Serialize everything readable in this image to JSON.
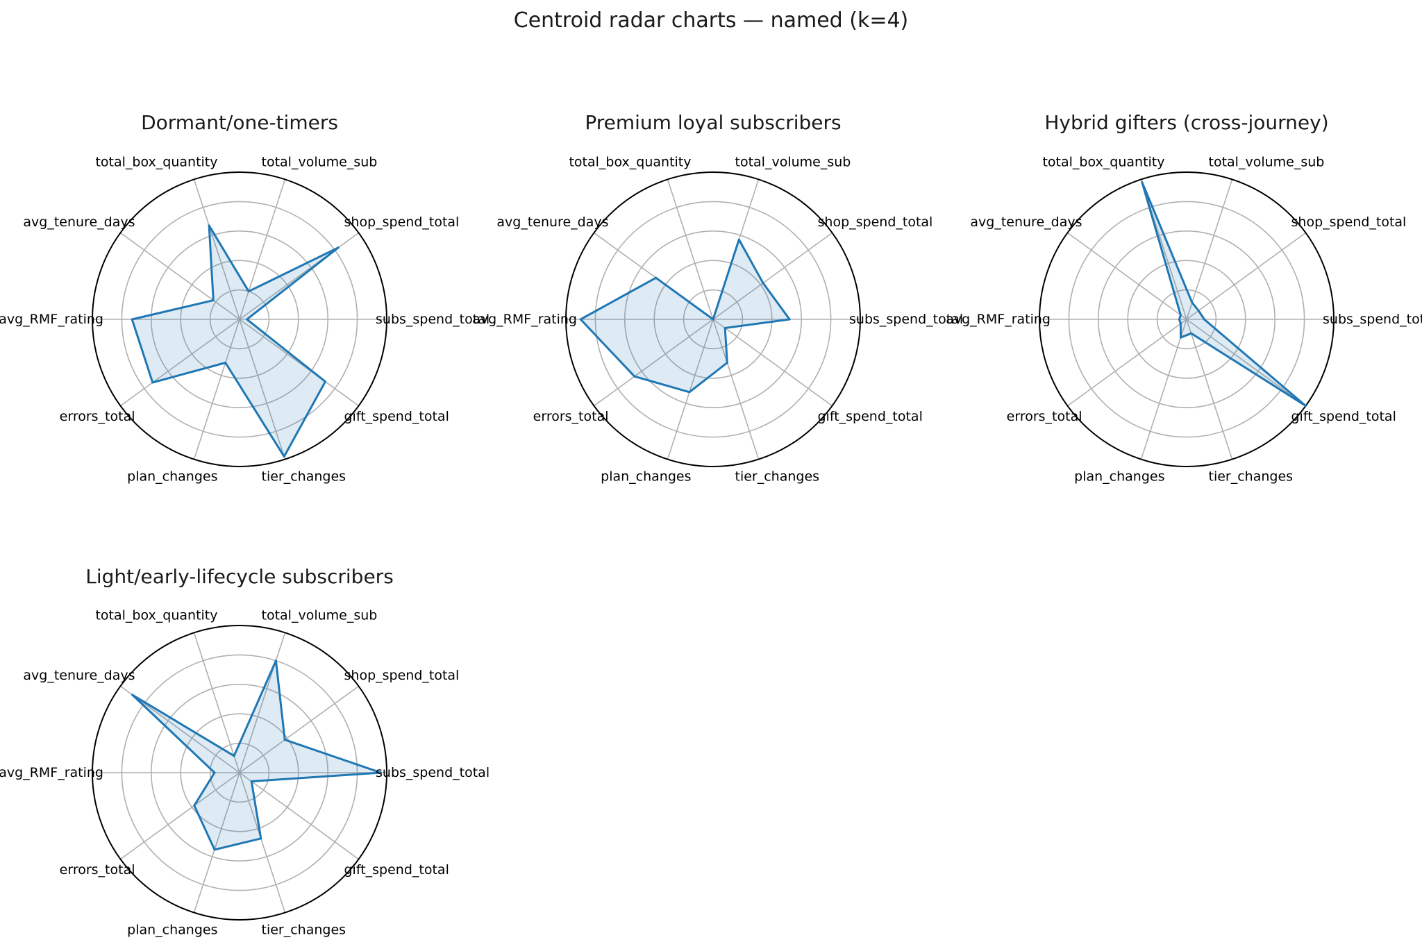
{
  "figure_title": "Centroid radar charts — named (k=4)",
  "colors": {
    "line": "#1f77b4",
    "fill": "#1f77b4",
    "grid": "#b0b0b0",
    "frame": "#000000"
  },
  "chart_data": [
    {
      "type": "radar",
      "title": "Dormant/one-timers",
      "axes": [
        "subs_spend_total",
        "shop_spend_total",
        "total_volume_sub",
        "total_box_quantity",
        "avg_tenure_days",
        "avg_RMF_rating",
        "errors_total",
        "plan_changes",
        "tier_changes",
        "gift_spend_total"
      ],
      "values": [
        0.05,
        0.83,
        0.2,
        0.67,
        0.22,
        0.73,
        0.73,
        0.31,
        0.98,
        0.72
      ],
      "rlim": [
        0,
        1
      ],
      "grid_rings": [
        0.2,
        0.4,
        0.6,
        0.8,
        1.0
      ]
    },
    {
      "type": "radar",
      "title": "Premium loyal subscribers",
      "axes": [
        "subs_spend_total",
        "shop_spend_total",
        "total_volume_sub",
        "total_box_quantity",
        "avg_tenure_days",
        "avg_RMF_rating",
        "errors_total",
        "plan_changes",
        "tier_changes",
        "gift_spend_total"
      ],
      "values": [
        0.52,
        0.42,
        0.57,
        0.0,
        0.48,
        0.9,
        0.66,
        0.52,
        0.31,
        0.1
      ],
      "rlim": [
        0,
        1
      ],
      "grid_rings": [
        0.2,
        0.4,
        0.6,
        0.8,
        1.0
      ]
    },
    {
      "type": "radar",
      "title": "Hybrid gifters (cross-journey)",
      "axes": [
        "subs_spend_total",
        "shop_spend_total",
        "total_volume_sub",
        "total_box_quantity",
        "avg_tenure_days",
        "avg_RMF_rating",
        "errors_total",
        "plan_changes",
        "tier_changes",
        "gift_spend_total"
      ],
      "values": [
        0.12,
        0.1,
        0.12,
        0.98,
        0.05,
        0.05,
        0.05,
        0.13,
        0.1,
        1.0
      ],
      "rlim": [
        0,
        1
      ],
      "grid_rings": [
        0.2,
        0.4,
        0.6,
        0.8,
        1.0
      ]
    },
    {
      "type": "radar",
      "title": "Light/early-lifecycle subscribers",
      "axes": [
        "subs_spend_total",
        "shop_spend_total",
        "total_volume_sub",
        "total_box_quantity",
        "avg_tenure_days",
        "avg_RMF_rating",
        "errors_total",
        "plan_changes",
        "tier_changes",
        "gift_spend_total"
      ],
      "values": [
        0.96,
        0.38,
        0.8,
        0.12,
        0.9,
        0.17,
        0.38,
        0.55,
        0.47,
        0.1
      ],
      "rlim": [
        0,
        1
      ],
      "grid_rings": [
        0.2,
        0.4,
        0.6,
        0.8,
        1.0
      ]
    }
  ]
}
